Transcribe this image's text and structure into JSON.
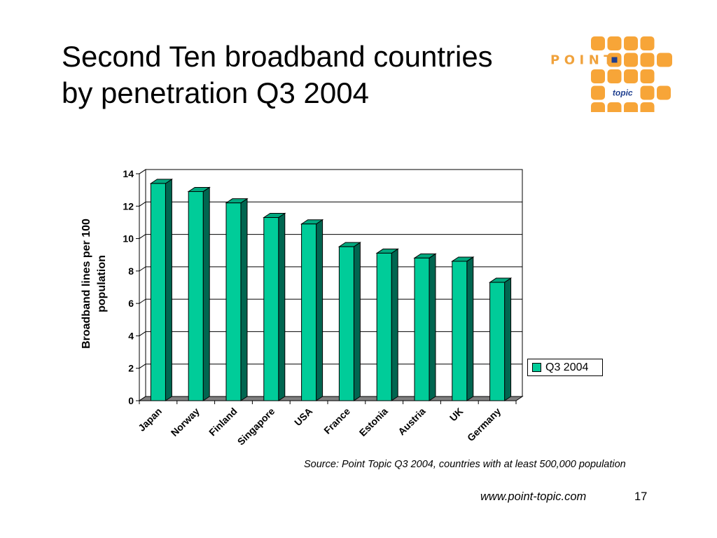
{
  "slide": {
    "title_line1": "Second Ten broadband countries",
    "title_line2": "by penetration Q3 2004",
    "source": "Source: Point Topic Q3 2004, countries with at least 500,000 population",
    "footer_url": "www.point-topic.com",
    "page_number": "17"
  },
  "logo": {
    "word": "POINT",
    "tagline": "topic",
    "colors": {
      "orange": "#F7A538",
      "text": "#F0A23C",
      "blue": "#1F3F8F"
    }
  },
  "colors": {
    "bar_front": "#00CC99",
    "bar_side": "#006650",
    "bar_top": "#00A87E",
    "floor": "#808080"
  },
  "chart_data": {
    "type": "bar",
    "categories": [
      "Japan",
      "Norway",
      "Finland",
      "Singapore",
      "USA",
      "France",
      "Estonia",
      "Austria",
      "UK",
      "Germany"
    ],
    "series": [
      {
        "name": "Q3 2004",
        "values": [
          13.4,
          12.9,
          12.2,
          11.3,
          10.9,
          9.5,
          9.1,
          8.8,
          8.6,
          7.3
        ]
      }
    ],
    "ylabel": "Broadband lines per 100 population",
    "ylim": [
      0,
      14
    ],
    "yticks": [
      0,
      2,
      4,
      6,
      8,
      10,
      12,
      14
    ],
    "grid": true,
    "legend": "right"
  }
}
